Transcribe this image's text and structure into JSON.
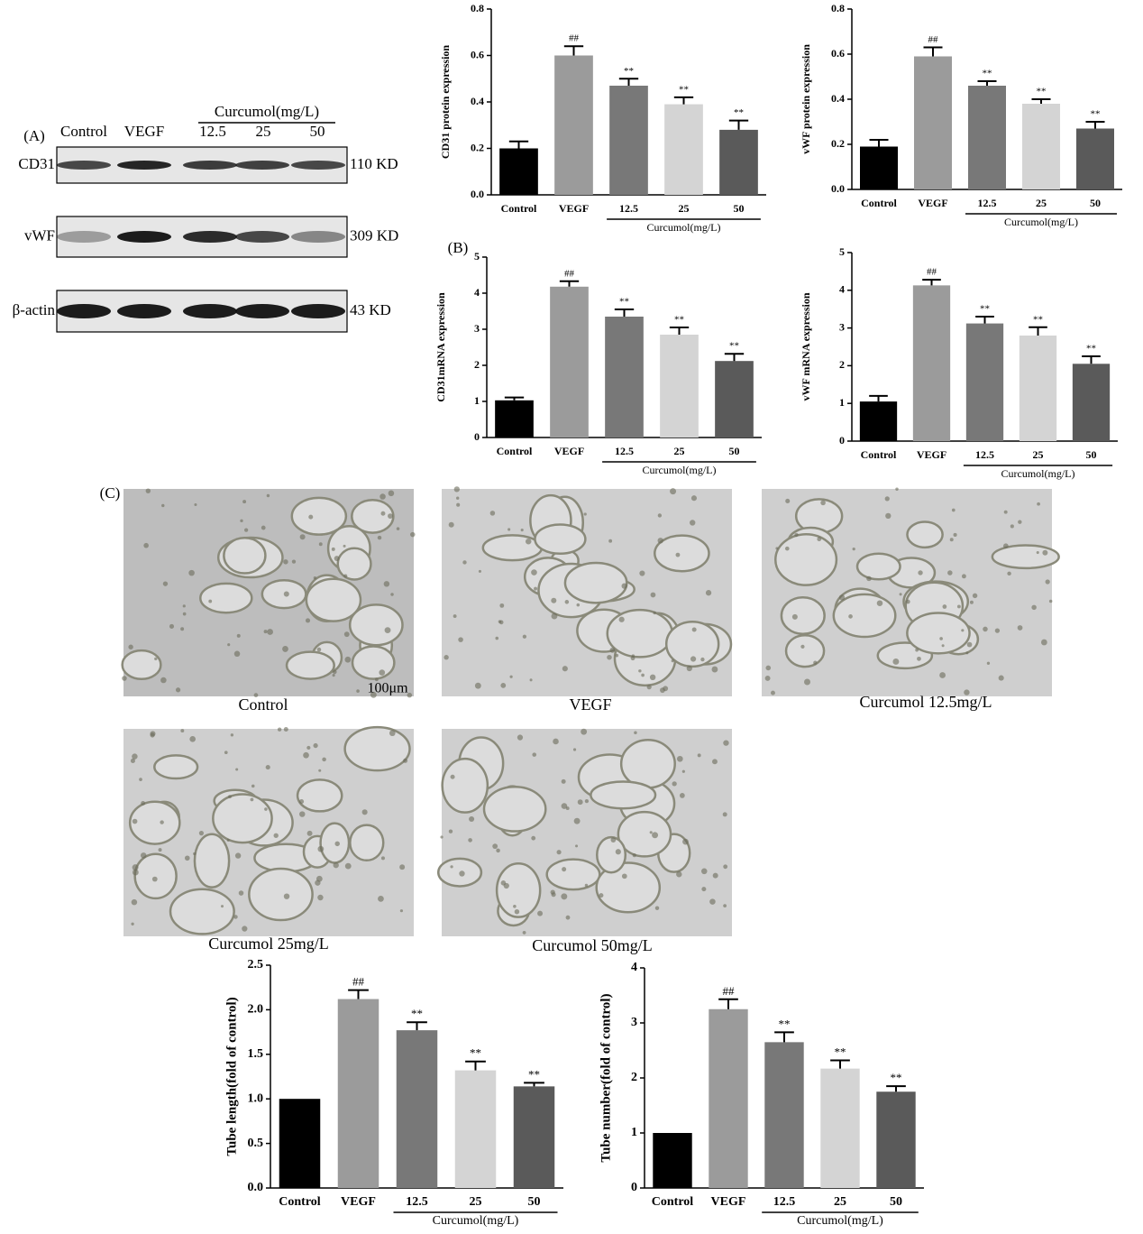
{
  "western_blot": {
    "panel_label": "(A)",
    "group_label": "Curcumol(mg/L)",
    "lanes": [
      "Control",
      "VEGF",
      "12.5",
      "25",
      "50"
    ],
    "rows": [
      {
        "name": "CD31",
        "size": "110 KD"
      },
      {
        "name": "vWF",
        "size": "309 KD"
      },
      {
        "name": "β-actin",
        "size": "43 KD"
      }
    ]
  },
  "panel_b_label": "(B)",
  "micrographs": {
    "panel_label": "(C)",
    "scale_bar": "100μm",
    "captions": [
      "Control",
      "VEGF",
      "Curcumol 12.5mg/L",
      "Curcumol 25mg/L",
      "Curcumol 50mg/L"
    ]
  },
  "chart_data": [
    {
      "type": "bar",
      "y_label": "CD31 protein expression",
      "categories": [
        "Control",
        "VEGF",
        "12.5",
        "25",
        "50"
      ],
      "group_label": "Curcumol(mg/L)",
      "values": [
        0.2,
        0.6,
        0.47,
        0.39,
        0.28
      ],
      "errors": [
        0.03,
        0.04,
        0.03,
        0.03,
        0.04
      ],
      "annotations": [
        null,
        "##",
        "**",
        "**",
        "**"
      ],
      "colors": [
        "#000000",
        "#9b9b9b",
        "#787878",
        "#d4d4d4",
        "#5a5a5a"
      ],
      "ylim": [
        0,
        0.8
      ],
      "yticks": [
        {
          "value": 0,
          "label": "0.0"
        },
        0.2,
        0.4,
        0.6,
        0.8
      ]
    },
    {
      "type": "bar",
      "y_label": "vWF protein expression",
      "categories": [
        "Control",
        "VEGF",
        "12.5",
        "25",
        "50"
      ],
      "group_label": "Curcumol(mg/L)",
      "values": [
        0.19,
        0.59,
        0.46,
        0.38,
        0.27
      ],
      "errors": [
        0.03,
        0.04,
        0.02,
        0.02,
        0.03
      ],
      "annotations": [
        null,
        "##",
        "**",
        "**",
        "**"
      ],
      "colors": [
        "#000000",
        "#9b9b9b",
        "#787878",
        "#d4d4d4",
        "#5a5a5a"
      ],
      "ylim": [
        0,
        0.8
      ],
      "yticks": [
        {
          "value": 0,
          "label": "0.0"
        },
        0.2,
        0.4,
        0.6,
        0.8
      ]
    },
    {
      "type": "bar",
      "y_label": "CD31mRNA expression",
      "categories": [
        "Control",
        "VEGF",
        "12.5",
        "25",
        "50"
      ],
      "group_label": "Curcumol(mg/L)",
      "values": [
        1.03,
        4.18,
        3.35,
        2.85,
        2.12
      ],
      "errors": [
        0.08,
        0.15,
        0.2,
        0.2,
        0.2
      ],
      "annotations": [
        null,
        "##",
        "**",
        "**",
        "**"
      ],
      "colors": [
        "#000000",
        "#9b9b9b",
        "#787878",
        "#d4d4d4",
        "#5a5a5a"
      ],
      "ylim": [
        0,
        5
      ],
      "yticks": [
        0,
        1,
        2,
        3,
        4,
        5
      ]
    },
    {
      "type": "bar",
      "y_label": "vWF mRNA expression",
      "categories": [
        "Control",
        "VEGF",
        "12.5",
        "25",
        "50"
      ],
      "group_label": "Curcumol(mg/L)",
      "values": [
        1.05,
        4.13,
        3.12,
        2.8,
        2.05
      ],
      "errors": [
        0.15,
        0.15,
        0.18,
        0.22,
        0.2
      ],
      "annotations": [
        null,
        "##",
        "**",
        "**",
        "**"
      ],
      "colors": [
        "#000000",
        "#9b9b9b",
        "#787878",
        "#d4d4d4",
        "#5a5a5a"
      ],
      "ylim": [
        0,
        5
      ],
      "yticks": [
        0,
        1,
        2,
        3,
        4,
        5
      ]
    },
    {
      "type": "bar",
      "y_label": "Tube length(fold of control)",
      "categories": [
        "Control",
        "VEGF",
        "12.5",
        "25",
        "50"
      ],
      "group_label": "Curcumol(mg/L)",
      "values": [
        1.0,
        2.12,
        1.77,
        1.32,
        1.14
      ],
      "errors": [
        null,
        0.1,
        0.09,
        0.1,
        0.04
      ],
      "annotations": [
        null,
        "##",
        "**",
        "**",
        "**"
      ],
      "colors": [
        "#000000",
        "#9b9b9b",
        "#787878",
        "#d4d4d4",
        "#5a5a5a"
      ],
      "ylim": [
        0,
        2.5
      ],
      "yticks": [
        {
          "value": 0,
          "label": "0.0"
        },
        0.5,
        {
          "value": 1,
          "label": "1.0"
        },
        1.5,
        {
          "value": 2,
          "label": "2.0"
        },
        2.5
      ]
    },
    {
      "type": "bar",
      "y_label": "Tube number(fold of control)",
      "categories": [
        "Control",
        "VEGF",
        "12.5",
        "25",
        "50"
      ],
      "group_label": "Curcumol(mg/L)",
      "values": [
        1.0,
        3.25,
        2.65,
        2.17,
        1.75
      ],
      "errors": [
        null,
        0.18,
        0.18,
        0.15,
        0.1
      ],
      "annotations": [
        null,
        "##",
        "**",
        "**",
        "**"
      ],
      "colors": [
        "#000000",
        "#9b9b9b",
        "#787878",
        "#d4d4d4",
        "#5a5a5a"
      ],
      "ylim": [
        0,
        4
      ],
      "yticks": [
        0,
        1,
        2,
        3,
        4
      ]
    }
  ]
}
